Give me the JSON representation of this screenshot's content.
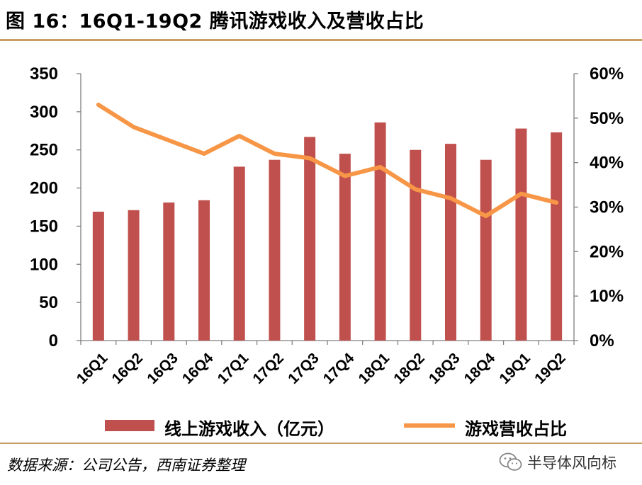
{
  "header": {
    "title": "图 16：16Q1-19Q2 腾讯游戏收入及营收占比"
  },
  "chart_data": {
    "type": "bar",
    "categories": [
      "16Q1",
      "16Q2",
      "16Q3",
      "16Q4",
      "17Q1",
      "17Q2",
      "17Q3",
      "17Q4",
      "18Q1",
      "18Q2",
      "18Q3",
      "18Q4",
      "19Q1",
      "19Q2"
    ],
    "series": [
      {
        "name": "线上游戏收入（亿元）",
        "type": "bar",
        "axis": "left",
        "color": "#c0504d",
        "values": [
          169,
          171,
          181,
          184,
          228,
          237,
          267,
          245,
          286,
          250,
          258,
          237,
          278,
          273
        ]
      },
      {
        "name": "游戏营收占比",
        "type": "line",
        "axis": "right",
        "color": "#f79646",
        "values": [
          0.53,
          0.48,
          0.45,
          0.42,
          0.46,
          0.42,
          0.41,
          0.37,
          0.39,
          0.34,
          0.32,
          0.28,
          0.33,
          0.31
        ]
      }
    ],
    "y_left": {
      "min": 0,
      "max": 350,
      "ticks": [
        "0",
        "50",
        "100",
        "150",
        "200",
        "250",
        "300",
        "350"
      ]
    },
    "y_right": {
      "min": 0,
      "max": 0.6,
      "ticks": [
        "0%",
        "10%",
        "20%",
        "30%",
        "40%",
        "50%",
        "60%"
      ]
    },
    "grid": false,
    "legend_position": "bottom"
  },
  "legend": {
    "bar_label": "线上游戏收入（亿元）",
    "line_label": "游戏营收占比"
  },
  "footer": {
    "source": "数据来源：公司公告，西南证券整理",
    "watermark": "半导体风向标"
  }
}
